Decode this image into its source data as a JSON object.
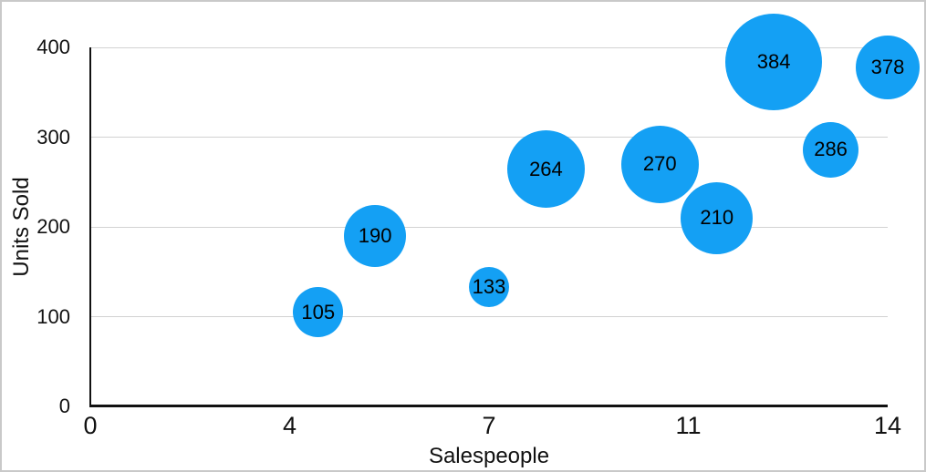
{
  "frame": {
    "background_color": "#ffffff",
    "border_color": "#c9c9c9"
  },
  "chart_data": {
    "type": "scatter",
    "subtype": "bubble",
    "title": "",
    "xlabel": "Salespeople",
    "ylabel": "Units Sold",
    "xlim": [
      0,
      14
    ],
    "ylim": [
      0,
      400
    ],
    "x_tick_labels": [
      "0",
      "4",
      "7",
      "11",
      "14"
    ],
    "y_ticks": [
      0,
      100,
      200,
      300,
      400
    ],
    "grid": "horizontal-only",
    "legend": "none",
    "bubble_color": "#14A0F4",
    "bubble_label_color": "#000000",
    "axis_color": "#111111",
    "gridline_color": "#d2d2d2",
    "tick_label_color": "#111111",
    "points": [
      {
        "x": 4,
        "y": 105,
        "label": "105",
        "radius_px": 27.5
      },
      {
        "x": 5,
        "y": 190,
        "label": "190",
        "radius_px": 34
      },
      {
        "x": 7,
        "y": 133,
        "label": "133",
        "radius_px": 22
      },
      {
        "x": 8,
        "y": 264,
        "label": "264",
        "radius_px": 42.5
      },
      {
        "x": 10,
        "y": 270,
        "label": "270",
        "radius_px": 42.5
      },
      {
        "x": 11,
        "y": 210,
        "label": "210",
        "radius_px": 39.5
      },
      {
        "x": 12,
        "y": 384,
        "label": "384",
        "radius_px": 53
      },
      {
        "x": 13,
        "y": 286,
        "label": "286",
        "radius_px": 30.5
      },
      {
        "x": 14,
        "y": 378,
        "label": "378",
        "radius_px": 35
      }
    ]
  }
}
